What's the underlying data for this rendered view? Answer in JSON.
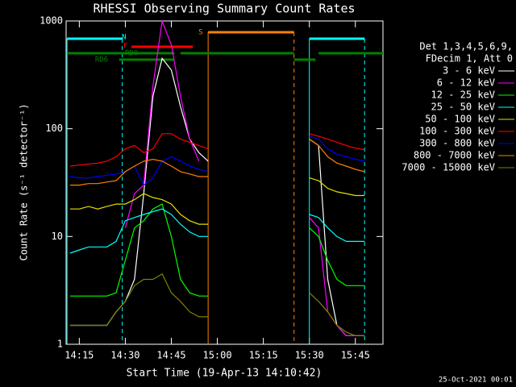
{
  "chart_data": {
    "type": "line",
    "title": "RHESSI Observing Summary Count Rates",
    "xlabel": "Start Time (19-Apr-13 14:10:42)",
    "ylabel": "Count Rate (s⁻¹ detector⁻¹)",
    "legend_title": [
      "Det 1,3,4,5,6,9,",
      "FDecim 1, Att 0"
    ],
    "footer": "25-Oct-2021 00:01",
    "log_y": true,
    "xlim": [
      "14:10:42",
      "15:54"
    ],
    "xticks": [
      "14:15",
      "14:30",
      "14:45",
      "15:00",
      "15:15",
      "15:30",
      "15:45"
    ],
    "ylim": [
      1,
      1000
    ],
    "yticks": [
      1,
      10,
      100,
      1000
    ],
    "x": [
      "14:12",
      "14:15",
      "14:18",
      "14:21",
      "14:24",
      "14:27",
      "14:30",
      "14:33",
      "14:36",
      "14:39",
      "14:42",
      "14:45",
      "14:48",
      "14:51",
      "14:54",
      "14:57",
      "15:15",
      "15:30",
      "15:33",
      "15:36",
      "15:39",
      "15:42",
      "15:45",
      "15:48"
    ],
    "series": [
      {
        "name": "3 - 6 keV",
        "color": "#ffffff",
        "values": [
          1.5,
          1.5,
          1.5,
          1.5,
          1.5,
          2,
          2.5,
          4,
          25,
          200,
          450,
          350,
          160,
          80,
          60,
          50,
          null,
          80,
          70,
          4,
          1.5,
          1.2,
          1.2,
          1.2
        ]
      },
      {
        "name": "6 - 12 keV",
        "color": "#ff00ff",
        "values": [
          null,
          null,
          null,
          null,
          null,
          null,
          12,
          25,
          30,
          250,
          1000,
          600,
          200,
          80,
          50,
          null,
          null,
          15,
          12,
          2,
          1.5,
          1.2,
          1.2,
          1.2
        ]
      },
      {
        "name": "12 - 25 keV",
        "color": "#00ff00",
        "values": [
          2.8,
          2.8,
          2.8,
          2.8,
          2.8,
          3,
          6,
          12,
          14,
          18,
          20,
          10,
          4,
          3,
          2.8,
          2.8,
          null,
          12,
          10,
          6,
          4,
          3.5,
          3.5,
          3.5
        ]
      },
      {
        "name": "25 - 50 keV",
        "color": "#00ffff",
        "values": [
          7,
          7.5,
          8,
          8,
          8,
          9,
          14,
          15,
          16,
          17,
          18,
          16,
          13,
          11,
          10,
          10,
          null,
          16,
          15,
          12,
          10,
          9,
          9,
          9
        ]
      },
      {
        "name": "50 - 100 keV",
        "color": "#e0e000",
        "values": [
          18,
          18,
          19,
          18,
          19,
          20,
          20,
          22,
          25,
          23,
          22,
          20,
          16,
          14,
          13,
          13,
          null,
          35,
          33,
          28,
          26,
          25,
          24,
          24
        ]
      },
      {
        "name": "100 - 300 keV",
        "color": "#ff0000",
        "values": [
          45,
          46,
          47,
          48,
          50,
          55,
          65,
          70,
          60,
          65,
          90,
          90,
          80,
          75,
          70,
          65,
          null,
          90,
          85,
          80,
          75,
          70,
          66,
          64
        ]
      },
      {
        "name": "300 - 800 keV",
        "color": "#0000ff",
        "values": [
          36,
          35,
          35,
          36,
          37,
          38,
          40,
          45,
          30,
          35,
          50,
          55,
          50,
          45,
          42,
          40,
          null,
          85,
          80,
          65,
          58,
          55,
          52,
          50
        ]
      },
      {
        "name": "800 - 7000 keV",
        "color": "#ff8000",
        "values": [
          30,
          30,
          31,
          31,
          32,
          33,
          40,
          45,
          50,
          52,
          50,
          45,
          40,
          38,
          36,
          36,
          null,
          80,
          70,
          55,
          48,
          45,
          42,
          40
        ]
      },
      {
        "name": "7000 - 15000 keV",
        "color": "#808000",
        "values": [
          1.5,
          1.5,
          1.5,
          1.5,
          1.5,
          2,
          2.5,
          3.5,
          4,
          4,
          4.5,
          3,
          2.5,
          2,
          1.8,
          1.8,
          null,
          3,
          2.5,
          2,
          1.5,
          1.3,
          1.2,
          1.2
        ]
      }
    ],
    "flags": [
      {
        "label": "S",
        "color": "#ff8000",
        "segments": [
          [
            "14:57",
            "15:25"
          ]
        ]
      },
      {
        "label": "N",
        "color": "#00ffff",
        "segments": [
          [
            "14:11",
            "14:29"
          ],
          [
            "15:30",
            "15:48"
          ]
        ]
      },
      {
        "label": "F",
        "color": "#ff0000",
        "segments": [
          [
            "14:32",
            "14:52"
          ]
        ]
      },
      {
        "label": "RD0",
        "color": "#008000",
        "segments": [
          [
            "14:11",
            "14:46"
          ],
          [
            "14:48",
            "15:25"
          ],
          [
            "15:33",
            "15:54"
          ]
        ]
      },
      {
        "label": "RD6",
        "color": "#008000",
        "segments": [
          [
            "14:28",
            "14:46"
          ],
          [
            "15:25",
            "15:32"
          ]
        ]
      }
    ]
  }
}
